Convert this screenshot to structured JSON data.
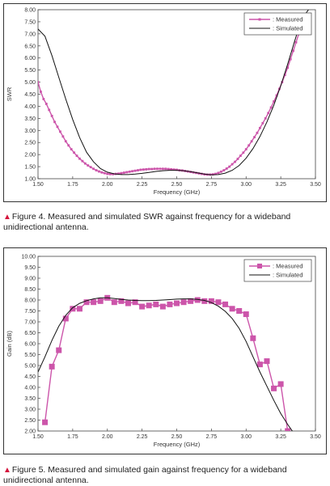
{
  "colors": {
    "measured": "#cc55aa",
    "simulated": "#111111",
    "caption_marker": "#d4143c"
  },
  "captions": {
    "marker": "▲",
    "fig4": "Figure 4. Measured and simulated SWR against frequency for a wideband unidirectional antenna.",
    "fig5": "Figure 5. Measured and simulated gain against frequency for a wideband unidirectional antenna."
  },
  "chart_data": [
    {
      "type": "line",
      "title": "",
      "xlabel": "Frequency (GHz)",
      "ylabel": "SWR",
      "xlim": [
        1.5,
        3.5
      ],
      "ylim": [
        1.0,
        8.0
      ],
      "xticks": [
        1.5,
        1.75,
        2.0,
        2.25,
        2.5,
        2.75,
        3.0,
        3.25,
        3.5
      ],
      "yticks": [
        1.0,
        1.5,
        2.0,
        2.5,
        3.0,
        3.5,
        4.0,
        4.5,
        5.0,
        5.5,
        6.0,
        6.5,
        7.0,
        7.5,
        8.0
      ],
      "legend_position": "top-right",
      "series": [
        {
          "name": ": Measured",
          "marker": "small-square",
          "x": [
            1.5,
            1.52,
            1.54,
            1.56,
            1.58,
            1.6,
            1.62,
            1.64,
            1.66,
            1.68,
            1.7,
            1.72,
            1.74,
            1.76,
            1.78,
            1.8,
            1.82,
            1.84,
            1.86,
            1.88,
            1.9,
            1.92,
            1.94,
            1.96,
            1.98,
            2.0,
            2.02,
            2.04,
            2.06,
            2.08,
            2.1,
            2.12,
            2.14,
            2.16,
            2.18,
            2.2,
            2.22,
            2.24,
            2.26,
            2.28,
            2.3,
            2.32,
            2.34,
            2.36,
            2.38,
            2.4,
            2.42,
            2.44,
            2.46,
            2.48,
            2.5,
            2.52,
            2.54,
            2.56,
            2.58,
            2.6,
            2.62,
            2.64,
            2.66,
            2.68,
            2.7,
            2.72,
            2.74,
            2.76,
            2.78,
            2.8,
            2.82,
            2.84,
            2.86,
            2.88,
            2.9,
            2.92,
            2.94,
            2.96,
            2.98,
            3.0,
            3.02,
            3.04,
            3.06,
            3.08,
            3.1,
            3.12,
            3.14,
            3.16,
            3.18,
            3.2,
            3.22,
            3.24,
            3.26,
            3.28,
            3.3,
            3.32,
            3.34,
            3.36,
            3.38,
            3.4,
            3.42
          ],
          "values": [
            5.0,
            4.6,
            4.3,
            4.1,
            3.85,
            3.6,
            3.35,
            3.15,
            2.95,
            2.75,
            2.55,
            2.38,
            2.22,
            2.08,
            1.95,
            1.83,
            1.73,
            1.63,
            1.55,
            1.48,
            1.41,
            1.35,
            1.3,
            1.26,
            1.23,
            1.2,
            1.19,
            1.19,
            1.2,
            1.21,
            1.23,
            1.25,
            1.27,
            1.29,
            1.31,
            1.33,
            1.35,
            1.37,
            1.38,
            1.39,
            1.4,
            1.4,
            1.41,
            1.41,
            1.41,
            1.41,
            1.41,
            1.4,
            1.39,
            1.38,
            1.37,
            1.35,
            1.34,
            1.32,
            1.3,
            1.28,
            1.26,
            1.24,
            1.22,
            1.2,
            1.18,
            1.17,
            1.17,
            1.18,
            1.2,
            1.24,
            1.29,
            1.35,
            1.42,
            1.5,
            1.6,
            1.7,
            1.82,
            1.95,
            2.08,
            2.22,
            2.38,
            2.55,
            2.72,
            2.9,
            3.1,
            3.3,
            3.5,
            3.72,
            3.95,
            4.2,
            4.45,
            4.72,
            5.0,
            5.3,
            5.6,
            5.95,
            6.3,
            6.65,
            7.0,
            7.35,
            7.7
          ]
        },
        {
          "name": ": Simulated",
          "marker": "none",
          "x": [
            1.5,
            1.55,
            1.6,
            1.65,
            1.7,
            1.75,
            1.8,
            1.85,
            1.9,
            1.95,
            2.0,
            2.05,
            2.1,
            2.15,
            2.2,
            2.25,
            2.3,
            2.35,
            2.4,
            2.45,
            2.5,
            2.55,
            2.6,
            2.65,
            2.7,
            2.75,
            2.8,
            2.85,
            2.9,
            2.95,
            3.0,
            3.05,
            3.1,
            3.15,
            3.2,
            3.25,
            3.3,
            3.35,
            3.4,
            3.45
          ],
          "values": [
            7.2,
            6.9,
            6.1,
            5.2,
            4.3,
            3.45,
            2.7,
            2.1,
            1.7,
            1.42,
            1.27,
            1.2,
            1.17,
            1.17,
            1.19,
            1.22,
            1.26,
            1.3,
            1.33,
            1.35,
            1.35,
            1.33,
            1.29,
            1.24,
            1.19,
            1.16,
            1.17,
            1.23,
            1.35,
            1.55,
            1.85,
            2.25,
            2.75,
            3.35,
            4.05,
            4.85,
            5.75,
            6.7,
            7.6,
            8.0
          ]
        }
      ]
    },
    {
      "type": "line",
      "title": "",
      "xlabel": "Frequency (GHz)",
      "ylabel": "Gain (dB)",
      "xlim": [
        1.5,
        3.5
      ],
      "ylim": [
        2.0,
        10.0
      ],
      "xticks": [
        1.5,
        1.75,
        2.0,
        2.25,
        2.5,
        2.75,
        3.0,
        3.25,
        3.5
      ],
      "yticks": [
        2.0,
        2.5,
        3.0,
        3.5,
        4.0,
        4.5,
        5.0,
        5.5,
        6.0,
        6.5,
        7.0,
        7.5,
        8.0,
        8.5,
        9.0,
        9.5,
        10.0
      ],
      "legend_position": "top-right",
      "series": [
        {
          "name": ": Measured",
          "marker": "large-square",
          "x": [
            1.55,
            1.6,
            1.65,
            1.7,
            1.75,
            1.8,
            1.85,
            1.9,
            1.95,
            2.0,
            2.05,
            2.1,
            2.15,
            2.2,
            2.25,
            2.3,
            2.35,
            2.4,
            2.45,
            2.5,
            2.55,
            2.6,
            2.65,
            2.7,
            2.75,
            2.8,
            2.85,
            2.9,
            2.95,
            3.0,
            3.05,
            3.1,
            3.15,
            3.2,
            3.25,
            3.3
          ],
          "values": [
            2.4,
            4.95,
            5.7,
            7.15,
            7.6,
            7.6,
            7.9,
            7.9,
            7.95,
            8.1,
            7.9,
            7.95,
            7.85,
            7.9,
            7.7,
            7.75,
            7.8,
            7.7,
            7.8,
            7.85,
            7.9,
            7.95,
            8.0,
            7.95,
            7.95,
            7.9,
            7.8,
            7.6,
            7.5,
            7.35,
            6.25,
            5.05,
            5.2,
            3.95,
            4.15,
            2.0
          ]
        },
        {
          "name": ": Simulated",
          "marker": "none",
          "x": [
            1.5,
            1.55,
            1.6,
            1.65,
            1.7,
            1.75,
            1.8,
            1.85,
            1.9,
            1.95,
            2.0,
            2.05,
            2.1,
            2.15,
            2.2,
            2.25,
            2.3,
            2.35,
            2.4,
            2.45,
            2.5,
            2.55,
            2.6,
            2.65,
            2.7,
            2.75,
            2.8,
            2.85,
            2.9,
            2.95,
            3.0,
            3.05,
            3.1,
            3.15,
            3.2,
            3.25,
            3.3,
            3.35
          ],
          "values": [
            4.7,
            5.4,
            6.15,
            6.8,
            7.3,
            7.65,
            7.85,
            7.97,
            8.05,
            8.1,
            8.1,
            8.07,
            8.03,
            8.0,
            7.98,
            7.97,
            7.97,
            7.98,
            8.0,
            8.02,
            8.04,
            8.05,
            8.05,
            8.03,
            7.98,
            7.88,
            7.72,
            7.48,
            7.15,
            6.7,
            6.1,
            5.4,
            4.7,
            4.05,
            3.4,
            2.8,
            2.3,
            1.85
          ]
        }
      ]
    }
  ]
}
